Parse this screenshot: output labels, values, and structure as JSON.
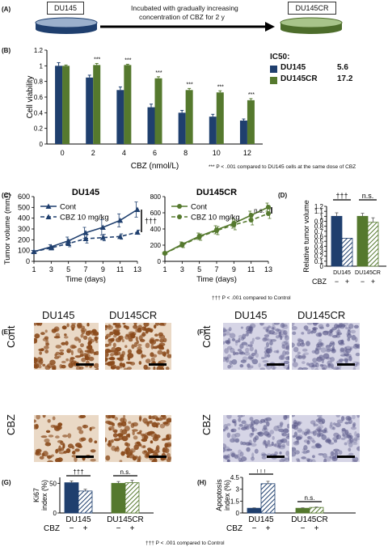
{
  "colors": {
    "du145": "#1f3f6e",
    "du145cr": "#55792e",
    "ihc_bg": "#ead9c6",
    "ihc_nuc": "#8a4a1b",
    "tunel_bg": "#d6d5e6",
    "tunel_nuc": "#5b5a8a"
  },
  "panelA": {
    "label": "(A)",
    "left_box": "DU145",
    "right_box": "DU145CR",
    "arrow_text_1": "Incubated with gradually increasing",
    "arrow_text_2": "concentration of CBZ for 2 y"
  },
  "panelB": {
    "label": "(B)",
    "ic50_title": "IC50:",
    "legend": [
      {
        "name": "DU145",
        "value": "5.6"
      },
      {
        "name": "DU145CR",
        "value": "17.2"
      }
    ],
    "footnote": "*** P < .001 compared to DU145 cells at the same dose of CBZ"
  },
  "panelC": {
    "label": "(C)",
    "footnote": "",
    "left_title": "DU145",
    "right_title": "DU145CR",
    "sig_left": "†††",
    "sig_right": "n.s."
  },
  "panelD": {
    "label": "(D)",
    "footnote": "††† P < .001 compared to Control",
    "sig_left": "†††",
    "sig_right": "n.s.",
    "x_groups": [
      "DU145",
      "DU145CR"
    ],
    "cbz_label": "CBZ",
    "signs": [
      "−",
      "+",
      "−",
      "+"
    ]
  },
  "panelE": {
    "label": "(E)",
    "col1": "DU145",
    "col2": "DU145CR",
    "row1": "Cont",
    "row2": "CBZ"
  },
  "panelF": {
    "label": "(F)",
    "col1": "DU145",
    "col2": "DU145CR",
    "row1": "Cont",
    "row2": "CBZ"
  },
  "panelG": {
    "label": "(G)",
    "sig_left": "†††",
    "sig_right": "n.s.",
    "x_groups": [
      "DU145",
      "DU145CR"
    ],
    "cbz_label": "CBZ",
    "signs": [
      "−",
      "+",
      "−",
      "+"
    ]
  },
  "panelH": {
    "label": "(H)",
    "sig_left": "†††",
    "sig_right": "n.s.",
    "x_groups": [
      "DU145",
      "DU145CR"
    ],
    "cbz_label": "CBZ",
    "signs": [
      "−",
      "+",
      "−",
      "+"
    ]
  },
  "bottom_footnote": "††† P < .001 compared to Control",
  "chart_data": [
    {
      "id": "B",
      "type": "bar",
      "categories": [
        "0",
        "2",
        "4",
        "6",
        "8",
        "10",
        "12"
      ],
      "xlabel": "CBZ (nmol/L)",
      "ylabel": "Cell viability",
      "ylim": [
        0,
        1.2
      ],
      "yticks": [
        "0",
        "0.2",
        "0.4",
        "0.6",
        "0.8",
        "1",
        "1.2"
      ],
      "series": [
        {
          "name": "DU145",
          "values": [
            1.0,
            0.85,
            0.69,
            0.47,
            0.4,
            0.35,
            0.3
          ],
          "errors": [
            0.04,
            0.03,
            0.04,
            0.04,
            0.03,
            0.03,
            0.02
          ]
        },
        {
          "name": "DU145CR",
          "values": [
            1.0,
            1.01,
            1.01,
            0.84,
            0.69,
            0.66,
            0.56
          ],
          "errors": [
            0.01,
            0.02,
            0.01,
            0.02,
            0.02,
            0.02,
            0.02
          ]
        }
      ],
      "annotations": [
        "",
        "***",
        "***",
        "***",
        "***",
        "***",
        "***"
      ]
    },
    {
      "id": "C1",
      "type": "line",
      "title": "DU145",
      "xlabel": "Time (days)",
      "ylabel": "Tumor volume (mm³)",
      "x": [
        1,
        3,
        5,
        7,
        9,
        11,
        13
      ],
      "xlim": [
        1,
        13
      ],
      "ylim": [
        0,
        600
      ],
      "yticks": [
        "0",
        "100",
        "200",
        "300",
        "400",
        "500",
        "600"
      ],
      "series": [
        {
          "name": "Cont",
          "values": [
            90,
            135,
            190,
            265,
            315,
            380,
            480
          ],
          "errors": [
            10,
            20,
            35,
            50,
            70,
            60,
            70
          ]
        },
        {
          "name": "CBZ 10 mg/kg",
          "values": [
            90,
            125,
            165,
            210,
            220,
            230,
            270
          ],
          "errors": [
            10,
            15,
            30,
            40,
            30,
            25,
            20
          ]
        }
      ]
    },
    {
      "id": "C2",
      "type": "line",
      "title": "DU145CR",
      "xlabel": "Time (days)",
      "ylabel": "",
      "x": [
        1,
        3,
        5,
        7,
        9,
        11,
        13
      ],
      "xlim": [
        1,
        13
      ],
      "ylim": [
        0,
        800
      ],
      "yticks": [
        "0",
        "200",
        "400",
        "600",
        "800"
      ],
      "series": [
        {
          "name": "Cont",
          "values": [
            100,
            210,
            310,
            390,
            470,
            570,
            670
          ],
          "errors": [
            10,
            30,
            40,
            50,
            60,
            50,
            50
          ]
        },
        {
          "name": "CBZ 10 mg/kg",
          "values": [
            100,
            200,
            300,
            380,
            450,
            510,
            590
          ],
          "errors": [
            10,
            30,
            40,
            50,
            60,
            60,
            60
          ]
        }
      ]
    },
    {
      "id": "D",
      "type": "bar",
      "ylabel": "Relative tumor volume",
      "ylim": [
        0,
        1.2
      ],
      "yticks": [
        "0",
        "0.1",
        "0.2",
        "0.3",
        "0.4",
        "0.5",
        "0.6",
        "0.7",
        "0.8",
        "0.9",
        "1",
        "1.1",
        "1.2"
      ],
      "groups": [
        "DU145",
        "DU145CR"
      ],
      "values": [
        [
          1.0,
          0.56
        ],
        [
          1.0,
          0.88
        ]
      ],
      "errors": [
        [
          0.07,
          0.0
        ],
        [
          0.06,
          0.09
        ]
      ]
    },
    {
      "id": "G",
      "type": "bar",
      "ylabel": "Ki67 index (%)",
      "ylim": [
        0,
        60
      ],
      "yticks": [
        "0",
        "50"
      ],
      "groups": [
        "DU145",
        "DU145CR"
      ],
      "values": [
        [
          51,
          37
        ],
        [
          50,
          51
        ]
      ],
      "errors": [
        [
          3,
          3
        ],
        [
          3,
          4
        ]
      ]
    },
    {
      "id": "H",
      "type": "bar",
      "ylabel": "Apoptosis index (%)",
      "ylim": [
        0,
        4.5
      ],
      "yticks": [
        "0",
        "1.5",
        "3",
        "4.5"
      ],
      "groups": [
        "DU145",
        "DU145CR"
      ],
      "values": [
        [
          0.6,
          3.7
        ],
        [
          0.6,
          0.7
        ]
      ],
      "errors": [
        [
          0.05,
          0.3
        ],
        [
          0.05,
          0.05
        ]
      ]
    }
  ]
}
